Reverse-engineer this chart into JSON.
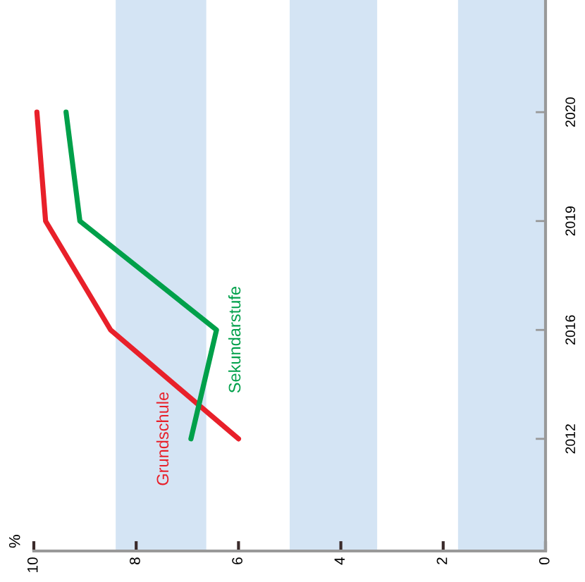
{
  "chart_data": {
    "type": "line",
    "orientation": "horizontal",
    "annotations": [
      "%"
    ],
    "categories": [
      "2020",
      "2019",
      "2016",
      "2012"
    ],
    "series": [
      {
        "name": "Grundschule",
        "color": "#e8202a",
        "values": [
          9.94,
          9.77,
          8.5,
          6.0
        ]
      },
      {
        "name": "Sekundarstufe",
        "color": "#00a04a",
        "values": [
          9.37,
          9.1,
          6.43,
          6.93
        ]
      }
    ],
    "xlim": [
      10,
      0
    ],
    "xticks": [
      10,
      8,
      6,
      4,
      2,
      0
    ],
    "bands": [
      {
        "axis": "x",
        "from": 8.4,
        "to": 6.63,
        "color": "#d4e4f4"
      },
      {
        "axis": "x",
        "from": 5.0,
        "to": 3.29,
        "color": "#d4e4f4"
      },
      {
        "axis": "x",
        "from": 1.71,
        "to": 0,
        "color": "#d4e4f4"
      }
    ],
    "grid": false,
    "legend": false,
    "marker": "none",
    "line_style": "solid"
  }
}
